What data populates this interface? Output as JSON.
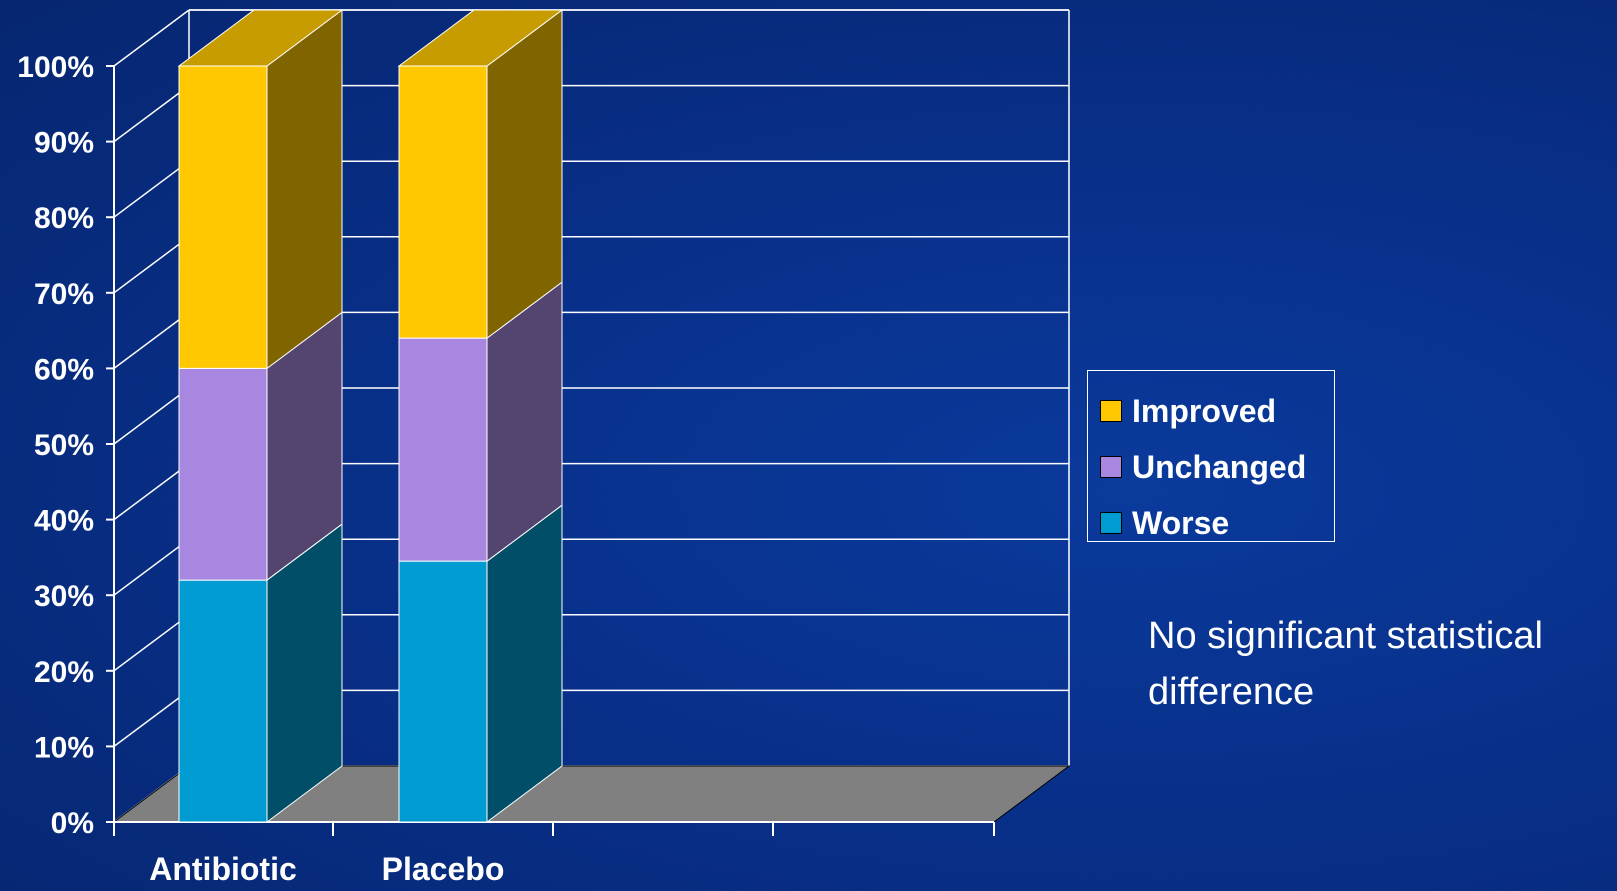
{
  "chart_data": {
    "type": "bar",
    "stacked": true,
    "style": "3d",
    "categories": [
      "Antibiotic",
      "Placebo"
    ],
    "series": [
      {
        "name": "Worse",
        "values": [
          32,
          34.5
        ],
        "color": "#009bd0"
      },
      {
        "name": "Unchanged",
        "values": [
          28,
          29.5
        ],
        "color": "#a887e0"
      },
      {
        "name": "Improved",
        "values": [
          40,
          36
        ],
        "color": "#ffc800"
      }
    ],
    "yticks": [
      "0%",
      "10%",
      "20%",
      "30%",
      "40%",
      "50%",
      "60%",
      "70%",
      "80%",
      "90%",
      "100%"
    ],
    "ylim": [
      0,
      100
    ],
    "grid": true,
    "legend_position": "right"
  },
  "legend": {
    "items": [
      {
        "label": "Improved",
        "color": "#ffc800"
      },
      {
        "label": "Unchanged",
        "color": "#a887e0"
      },
      {
        "label": "Worse",
        "color": "#009bd0"
      }
    ]
  },
  "note": "No significant statistical difference"
}
